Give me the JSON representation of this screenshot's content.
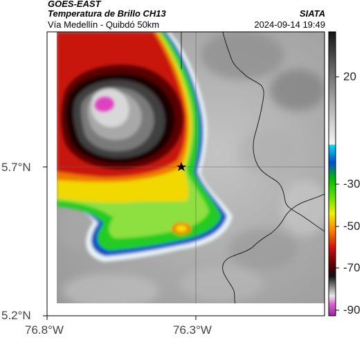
{
  "header": {
    "satellite": "GOES-EAST",
    "product": "Temperatura de Brillo CH13",
    "region": "Vía Medellín - Quibdó 50km",
    "source": "SIATA",
    "datetime": "2024-09-14 19:49"
  },
  "axes": {
    "lat_ticks": [
      "5.7°N",
      "5.2°N"
    ],
    "lon_ticks": [
      "76.8°W",
      "76.3°W"
    ]
  },
  "colorbar": {
    "tick_labels": [
      "20",
      "-30",
      "-50",
      "-70",
      "-90"
    ]
  },
  "map": {
    "marker": "star",
    "colors": {
      "warm_gray": "#b4b4b4",
      "cloud_red": "#c8160c",
      "cloud_dark": "#1a0606",
      "green": "#22cc22",
      "yellow": "#e6ee00",
      "cyan": "#00c8e6",
      "magenta": "#e040c0",
      "border": "#000000"
    }
  }
}
